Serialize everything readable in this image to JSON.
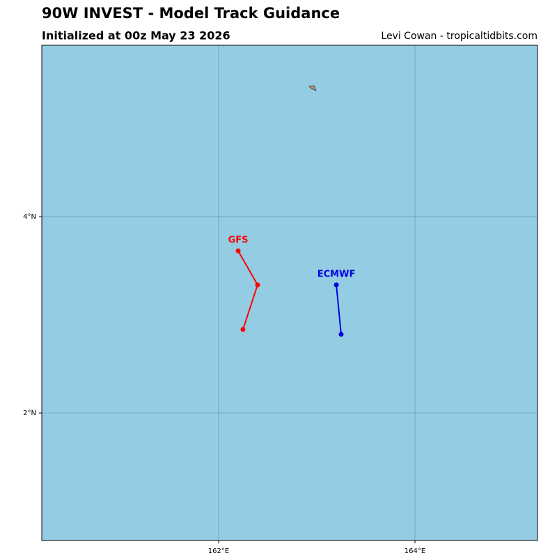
{
  "chart_data": {
    "type": "line",
    "title": "90W INVEST - Model Track Guidance",
    "subtitle": "Initialized at 00z May 23 2026",
    "credit": "Levi Cowan - tropicaltidbits.com",
    "xlim": [
      160.199,
      165.248
    ],
    "ylim": [
      0.702,
      5.745
    ],
    "xticks": [
      {
        "value": 162,
        "label": "162°E"
      },
      {
        "value": 164,
        "label": "164°E"
      }
    ],
    "yticks": [
      {
        "value": 2,
        "label": "2°N"
      },
      {
        "value": 4,
        "label": "4°N"
      }
    ],
    "grid": true,
    "series": [
      {
        "name": "GFS",
        "color": "#ff0000",
        "x": [
          162.199,
          162.397,
          162.248
        ],
        "values": [
          3.652,
          3.305,
          2.851
        ]
      },
      {
        "name": "ECMWF",
        "color": "#0000e0",
        "x": [
          163.199,
          163.248
        ],
        "values": [
          3.305,
          2.801
        ]
      }
    ]
  }
}
